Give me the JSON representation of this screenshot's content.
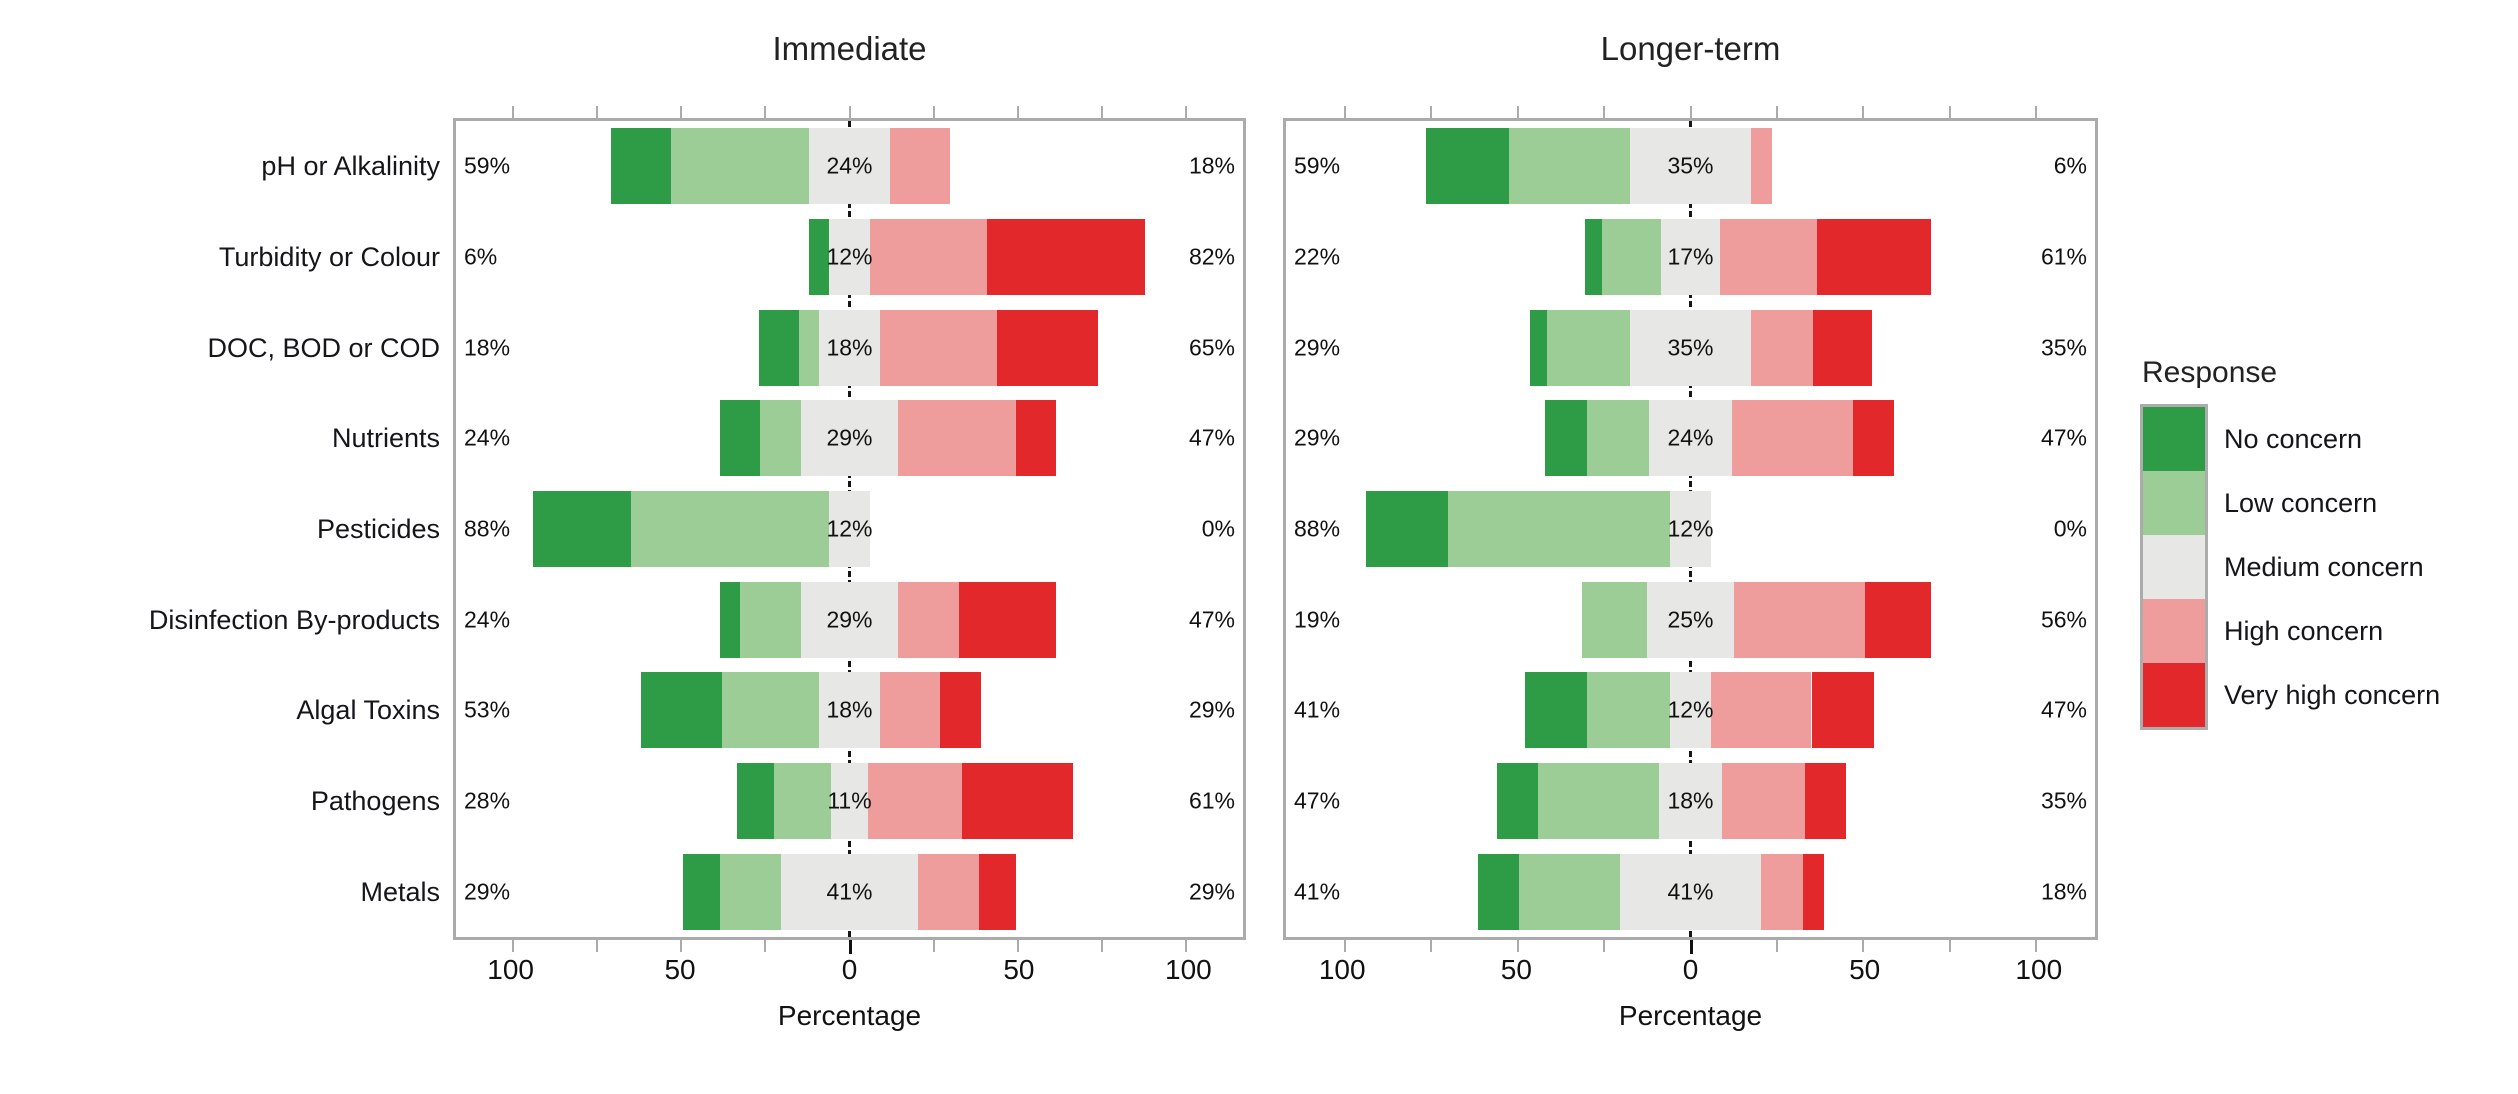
{
  "colors": {
    "background": "#FFFFFF",
    "panel_border": "#ABABAB",
    "legend_border": "#ACACAC",
    "zero_line": "#161616",
    "text": "#15151A"
  },
  "chart_data": {
    "type": "bar",
    "variant": "diverging-stacked-likert",
    "title": "",
    "xlabel": "Percentage",
    "x_ticks": [
      "100",
      "50",
      "0",
      "50",
      "100"
    ],
    "x_tick_values": [
      -100,
      -50,
      0,
      50,
      100
    ],
    "minor_tick_step": 25,
    "x_domain": [
      -117,
      117
    ],
    "grid": false,
    "legend_position": "right",
    "categories": [
      "pH or Alkalinity",
      "Turbidity or Colour",
      "DOC, BOD or COD",
      "Nutrients",
      "Pesticides",
      "Disinfection By-products",
      "Algal Toxins",
      "Pathogens",
      "Metals"
    ],
    "legend": {
      "title": "Response",
      "entries": [
        {
          "key": "no_concern",
          "label": "No concern",
          "color": "#2E9B47"
        },
        {
          "key": "low_concern",
          "label": "Low concern",
          "color": "#9CCD97"
        },
        {
          "key": "medium_concern",
          "label": "Medium concern",
          "color": "#E7E7E5"
        },
        {
          "key": "high_concern",
          "label": "High concern",
          "color": "#EF9D9C"
        },
        {
          "key": "very_high_concern",
          "label": "Very high concern",
          "color": "#E2282B"
        }
      ]
    },
    "panels": [
      {
        "title": "Immediate",
        "rows": [
          {
            "category": "pH or Alkalinity",
            "left_label": "59%",
            "center_label": "24%",
            "right_label": "18%",
            "segments": {
              "no_concern": 18,
              "low_concern": 41,
              "medium_concern": 24,
              "high_concern": 18,
              "very_high_concern": 0
            }
          },
          {
            "category": "Turbidity or Colour",
            "left_label": "6%",
            "center_label": "12%",
            "right_label": "82%",
            "segments": {
              "no_concern": 6,
              "low_concern": 0,
              "medium_concern": 12,
              "high_concern": 35,
              "very_high_concern": 47
            }
          },
          {
            "category": "DOC, BOD or COD",
            "left_label": "18%",
            "center_label": "18%",
            "right_label": "65%",
            "segments": {
              "no_concern": 12,
              "low_concern": 6,
              "medium_concern": 18,
              "high_concern": 35,
              "very_high_concern": 30
            }
          },
          {
            "category": "Nutrients",
            "left_label": "24%",
            "center_label": "29%",
            "right_label": "47%",
            "segments": {
              "no_concern": 12,
              "low_concern": 12,
              "medium_concern": 29,
              "high_concern": 35,
              "very_high_concern": 12
            }
          },
          {
            "category": "Pesticides",
            "left_label": "88%",
            "center_label": "12%",
            "right_label": "0%",
            "segments": {
              "no_concern": 29,
              "low_concern": 59,
              "medium_concern": 12,
              "high_concern": 0,
              "very_high_concern": 0
            }
          },
          {
            "category": "Disinfection By-products",
            "left_label": "24%",
            "center_label": "29%",
            "right_label": "47%",
            "segments": {
              "no_concern": 6,
              "low_concern": 18,
              "medium_concern": 29,
              "high_concern": 18,
              "very_high_concern": 29
            }
          },
          {
            "category": "Algal Toxins",
            "left_label": "53%",
            "center_label": "18%",
            "right_label": "29%",
            "segments": {
              "no_concern": 24,
              "low_concern": 29,
              "medium_concern": 18,
              "high_concern": 18,
              "very_high_concern": 12
            }
          },
          {
            "category": "Pathogens",
            "left_label": "28%",
            "center_label": "11%",
            "right_label": "61%",
            "segments": {
              "no_concern": 11,
              "low_concern": 17,
              "medium_concern": 11,
              "high_concern": 28,
              "very_high_concern": 33
            }
          },
          {
            "category": "Metals",
            "left_label": "29%",
            "center_label": "41%",
            "right_label": "29%",
            "segments": {
              "no_concern": 11,
              "low_concern": 18,
              "medium_concern": 41,
              "high_concern": 18,
              "very_high_concern": 11
            }
          }
        ]
      },
      {
        "title": "Longer-term",
        "rows": [
          {
            "category": "pH or Alkalinity",
            "left_label": "59%",
            "center_label": "35%",
            "right_label": "6%",
            "segments": {
              "no_concern": 24,
              "low_concern": 35,
              "medium_concern": 35,
              "high_concern": 6,
              "very_high_concern": 0
            }
          },
          {
            "category": "Turbidity or Colour",
            "left_label": "22%",
            "center_label": "17%",
            "right_label": "61%",
            "segments": {
              "no_concern": 5,
              "low_concern": 17,
              "medium_concern": 17,
              "high_concern": 28,
              "very_high_concern": 33
            }
          },
          {
            "category": "DOC, BOD or COD",
            "left_label": "29%",
            "center_label": "35%",
            "right_label": "35%",
            "segments": {
              "no_concern": 5,
              "low_concern": 24,
              "medium_concern": 35,
              "high_concern": 18,
              "very_high_concern": 17
            }
          },
          {
            "category": "Nutrients",
            "left_label": "29%",
            "center_label": "24%",
            "right_label": "47%",
            "segments": {
              "no_concern": 12,
              "low_concern": 18,
              "medium_concern": 24,
              "high_concern": 35,
              "very_high_concern": 12
            }
          },
          {
            "category": "Pesticides",
            "left_label": "88%",
            "center_label": "12%",
            "right_label": "0%",
            "segments": {
              "no_concern": 24,
              "low_concern": 64,
              "medium_concern": 12,
              "high_concern": 0,
              "very_high_concern": 0
            }
          },
          {
            "category": "Disinfection By-products",
            "left_label": "19%",
            "center_label": "25%",
            "right_label": "56%",
            "segments": {
              "no_concern": 0,
              "low_concern": 19,
              "medium_concern": 25,
              "high_concern": 38,
              "very_high_concern": 19
            }
          },
          {
            "category": "Algal Toxins",
            "left_label": "41%",
            "center_label": "12%",
            "right_label": "47%",
            "segments": {
              "no_concern": 18,
              "low_concern": 24,
              "medium_concern": 12,
              "high_concern": 29,
              "very_high_concern": 18
            }
          },
          {
            "category": "Pathogens",
            "left_label": "47%",
            "center_label": "18%",
            "right_label": "35%",
            "segments": {
              "no_concern": 12,
              "low_concern": 35,
              "medium_concern": 18,
              "high_concern": 24,
              "very_high_concern": 12
            }
          },
          {
            "category": "Metals",
            "left_label": "41%",
            "center_label": "41%",
            "right_label": "18%",
            "segments": {
              "no_concern": 12,
              "low_concern": 29,
              "medium_concern": 41,
              "high_concern": 12,
              "very_high_concern": 6
            }
          }
        ]
      }
    ]
  }
}
